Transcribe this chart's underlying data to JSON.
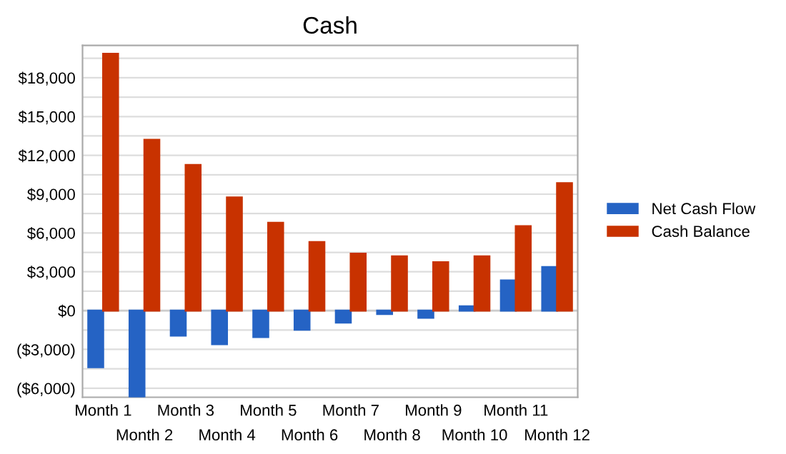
{
  "chart_data": {
    "type": "bar",
    "title": "Cash",
    "categories": [
      "Month 1",
      "Month 2",
      "Month 3",
      "Month 4",
      "Month 5",
      "Month 6",
      "Month 7",
      "Month 8",
      "Month 9",
      "Month 10",
      "Month 11",
      "Month 12"
    ],
    "series": [
      {
        "name": "Net Cash Flow",
        "color": "#2563c4",
        "values": [
          -4370,
          -6700,
          -1930,
          -2600,
          -2040,
          -1480,
          -930,
          -260,
          -560,
          330,
          2330,
          3370
        ]
      },
      {
        "name": "Cash Balance",
        "color": "#c83200",
        "values": [
          19850,
          13200,
          11260,
          8740,
          6780,
          5300,
          4400,
          4190,
          3740,
          4190,
          6520,
          9850
        ]
      }
    ],
    "ylim": [
      -6700,
      20500
    ],
    "yticks": [
      {
        "value": -6000,
        "label": "($6,000)"
      },
      {
        "value": -4500,
        "label": null
      },
      {
        "value": -3000,
        "label": "($3,000)"
      },
      {
        "value": -1500,
        "label": null
      },
      {
        "value": 0,
        "label": "$0"
      },
      {
        "value": 1500,
        "label": null
      },
      {
        "value": 3000,
        "label": "$3,000"
      },
      {
        "value": 4500,
        "label": null
      },
      {
        "value": 6000,
        "label": "$6,000"
      },
      {
        "value": 7500,
        "label": null
      },
      {
        "value": 9000,
        "label": "$9,000"
      },
      {
        "value": 10500,
        "label": null
      },
      {
        "value": 12000,
        "label": "$12,000"
      },
      {
        "value": 13500,
        "label": null
      },
      {
        "value": 15000,
        "label": "$15,000"
      },
      {
        "value": 16500,
        "label": null
      },
      {
        "value": 18000,
        "label": "$18,000"
      },
      {
        "value": 19500,
        "label": null
      }
    ],
    "grid": "y",
    "legend": "right"
  }
}
